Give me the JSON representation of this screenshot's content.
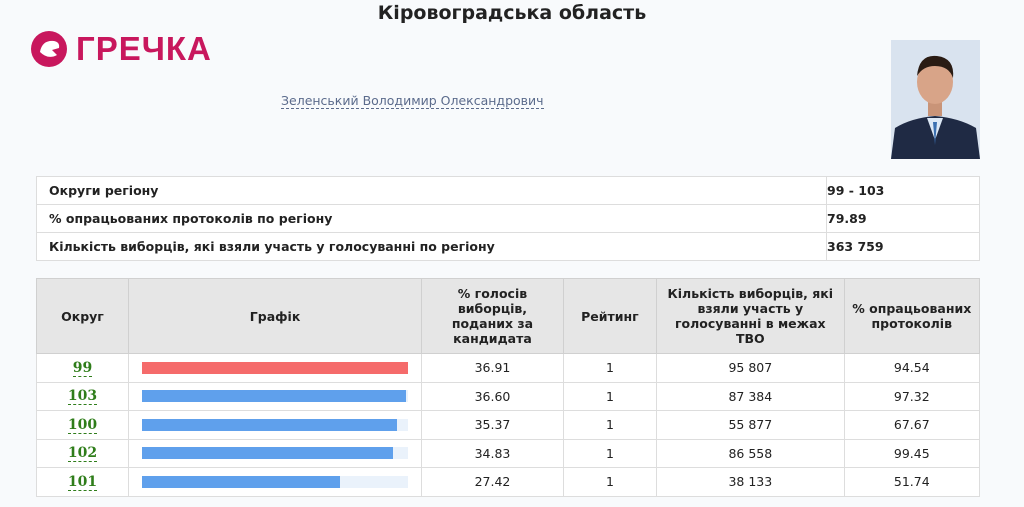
{
  "header": {
    "title": "Кіровоградська область",
    "logo": "ГРЕЧКА",
    "candidate": "Зеленський Володимир Олександрович"
  },
  "summary": [
    {
      "label": "Округи регіону",
      "value": "99 - 103"
    },
    {
      "label": "% опрацьованих протоколів по регіону",
      "value": "79.89"
    },
    {
      "label": "Кількість виборців, які взяли участь у голосуванні по регіону",
      "value": "363 759"
    }
  ],
  "table": {
    "columns": [
      "Округ",
      "Графік",
      "% голосів виборців, поданих за кандидата",
      "Рейтинг",
      "Кількість виборців, які взяли участь у голосуванні в межах ТВО",
      "% опрацьованих протоколів"
    ],
    "rows": [
      {
        "district": "99",
        "color": "#f56b6b",
        "percent": {
          "value": 36.91,
          "label": "36.91"
        },
        "rating": "1",
        "voters": "95 807",
        "processed": "94.54"
      },
      {
        "district": "103",
        "color": "#5fa0ec",
        "percent": {
          "value": 36.6,
          "label": "36.60"
        },
        "rating": "1",
        "voters": "87 384",
        "processed": "97.32"
      },
      {
        "district": "100",
        "color": "#5fa0ec",
        "percent": {
          "value": 35.37,
          "label": "35.37"
        },
        "rating": "1",
        "voters": "55 877",
        "processed": "67.67"
      },
      {
        "district": "102",
        "color": "#5fa0ec",
        "percent": {
          "value": 34.83,
          "label": "34.83"
        },
        "rating": "1",
        "voters": "86 558",
        "processed": "99.45"
      },
      {
        "district": "101",
        "color": "#5fa0ec",
        "percent": {
          "value": 27.42,
          "label": "27.42"
        },
        "rating": "1",
        "voters": "38 133",
        "processed": "51.74"
      }
    ]
  }
}
